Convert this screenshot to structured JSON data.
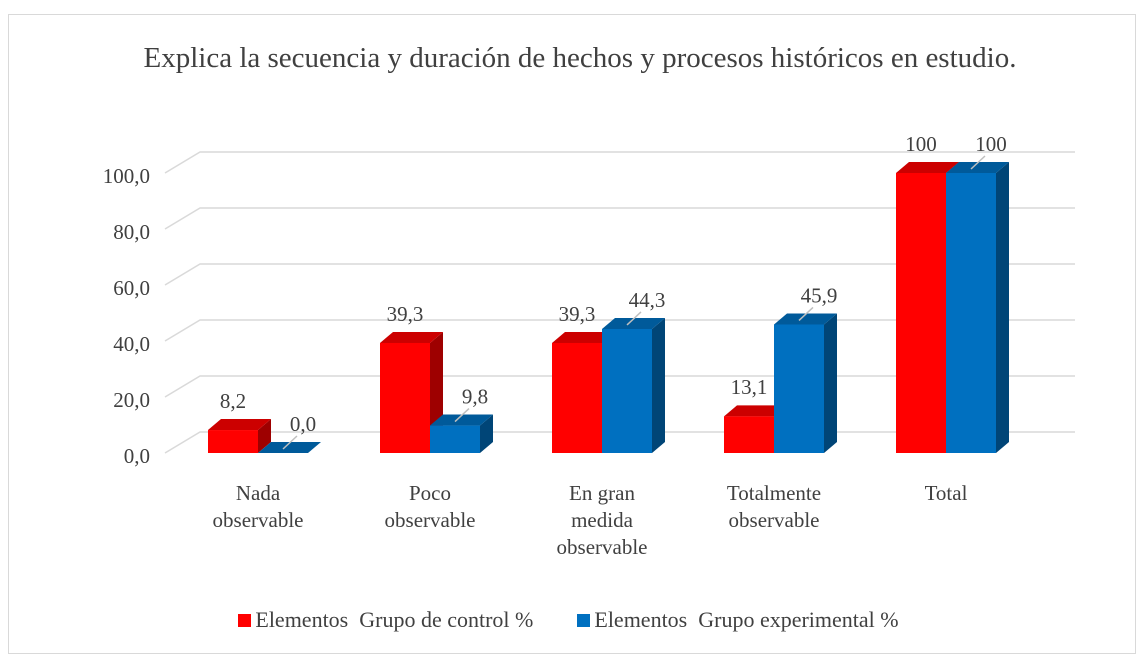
{
  "chart_data": {
    "type": "bar3d",
    "title": "Explica la secuencia y duración de hechos y procesos históricos en estudio.",
    "categories": [
      "Nada observable",
      "Poco observable",
      "En gran medida observable",
      "Totalmente observable",
      "Total"
    ],
    "series": [
      {
        "name": "Elementos  Grupo de control %",
        "color": "#ff0000",
        "values": [
          8.2,
          39.3,
          39.3,
          13.1,
          100
        ],
        "value_labels": [
          "8,2",
          "39,3",
          "39,3",
          "13,1",
          "100"
        ]
      },
      {
        "name": "Elementos  Grupo experimental %",
        "color": "#0070c0",
        "values": [
          0.0,
          9.8,
          44.3,
          45.9,
          100
        ],
        "value_labels": [
          "0,0",
          "9,8",
          "44,3",
          "45,9",
          "100"
        ]
      }
    ],
    "ylim": [
      0,
      100
    ],
    "yticks": [
      {
        "value": 0,
        "label": "0,0"
      },
      {
        "value": 20,
        "label": "20,0"
      },
      {
        "value": 40,
        "label": "40,0"
      },
      {
        "value": 60,
        "label": "60,0"
      },
      {
        "value": 80,
        "label": "80,0"
      },
      {
        "value": 100,
        "label": "100,0"
      }
    ],
    "grid": true,
    "legend": "bottom"
  }
}
